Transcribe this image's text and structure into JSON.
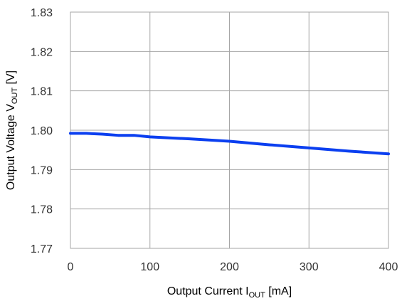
{
  "chart_data": {
    "type": "line",
    "title": "",
    "xlabel": {
      "main": "Output Current I",
      "sub": "OUT",
      "suffix": " [mA]"
    },
    "ylabel": {
      "main": "Output Voltage  V",
      "sub": "OUT",
      "suffix": " [V]"
    },
    "xlim": [
      0,
      400
    ],
    "ylim": [
      1.77,
      1.83
    ],
    "xticks": [
      "0",
      "100",
      "200",
      "300",
      "400"
    ],
    "yticks": [
      "1.77",
      "1.78",
      "1.79",
      "1.80",
      "1.81",
      "1.82",
      "1.83"
    ],
    "grid": true,
    "legend": "none",
    "series": [
      {
        "color": "#0b3ff0",
        "x": [
          0,
          20,
          40,
          60,
          80,
          100,
          150,
          200,
          250,
          300,
          350,
          400
        ],
        "y": [
          1.7992,
          1.7992,
          1.799,
          1.7987,
          1.7987,
          1.7983,
          1.7978,
          1.7972,
          1.7963,
          1.7955,
          1.7947,
          1.794
        ]
      }
    ]
  }
}
